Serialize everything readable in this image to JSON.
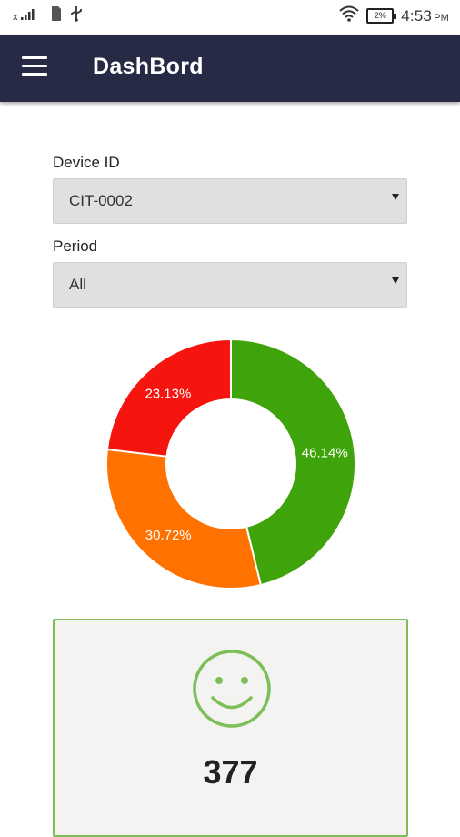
{
  "status_bar": {
    "signal_text": "x",
    "battery": "2%",
    "time": "4:53",
    "ampm": "PM",
    "icons": [
      "signal-icon",
      "sim-icon",
      "usb-icon",
      "wifi-icon",
      "battery-icon"
    ]
  },
  "app_bar": {
    "title": "DashBord",
    "menu_icon": "hamburger-menu-icon",
    "background": "#262a45"
  },
  "filters": {
    "device": {
      "label": "Device ID",
      "value": "CIT-0002"
    },
    "period": {
      "label": "Period",
      "value": "All"
    }
  },
  "chart_data": {
    "type": "pie",
    "donut": true,
    "slices": [
      {
        "value": 46.14,
        "label": "46.14%",
        "color": "#3fa40b"
      },
      {
        "value": 30.72,
        "label": "30.72%",
        "color": "#ff7200"
      },
      {
        "value": 23.13,
        "label": "23.13%",
        "color": "#f5140e"
      }
    ]
  },
  "summary_card": {
    "icon": "smiley-face-icon",
    "count": "377",
    "accent": "#7cbf58"
  }
}
